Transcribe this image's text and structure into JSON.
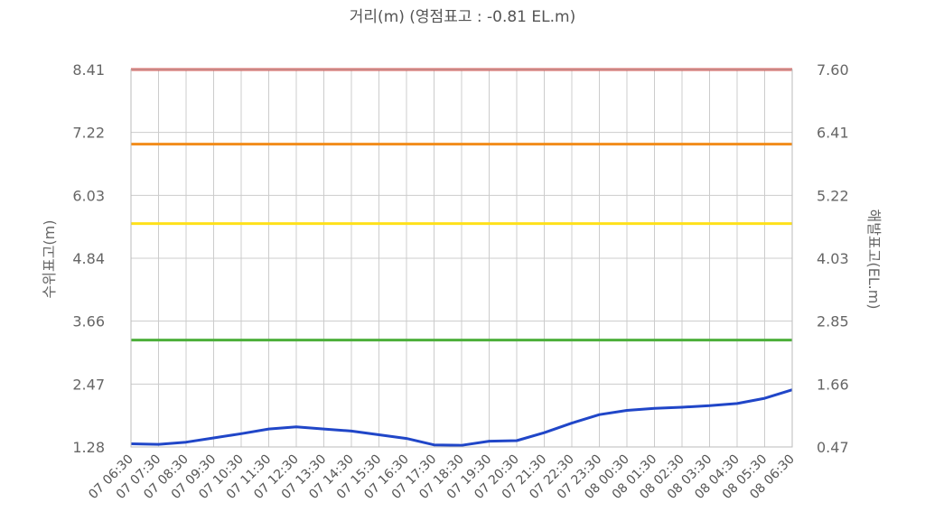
{
  "chart_data": {
    "type": "line",
    "title": "거리(m) (영점표고 : -0.81 EL.m)",
    "ylabel_left": "수위표고(m)",
    "ylabel_right": "해발표고(EL.m)",
    "ylim_left": [
      1.28,
      8.41
    ],
    "ylim_right": [
      0.47,
      7.6
    ],
    "yticks_left": [
      "8.41",
      "7.22",
      "6.03",
      "4.84",
      "3.66",
      "2.47",
      "1.28"
    ],
    "yticks_right": [
      "7.60",
      "6.41",
      "5.22",
      "4.03",
      "2.85",
      "1.66",
      "0.47"
    ],
    "categories": [
      "07 06:30",
      "07 07:30",
      "07 08:30",
      "07 09:30",
      "07 10:30",
      "07 11:30",
      "07 12:30",
      "07 13:30",
      "07 14:30",
      "07 15:30",
      "07 16:30",
      "07 17:30",
      "07 18:30",
      "07 19:30",
      "07 20:30",
      "07 21:30",
      "07 22:30",
      "07 23:30",
      "08 00:30",
      "08 01:30",
      "08 02:30",
      "08 03:30",
      "08 04:30",
      "08 05:30",
      "08 06:30"
    ],
    "grid": true,
    "threshold_lines": [
      {
        "value": 8.41,
        "color": "#d9534f"
      },
      {
        "value": 7.0,
        "color": "#f28c1a"
      },
      {
        "value": 5.5,
        "color": "#ffe11a"
      },
      {
        "value": 3.3,
        "color": "#4caf3a"
      }
    ],
    "series": [
      {
        "color": "#2046c8",
        "values": [
          1.34,
          1.33,
          1.37,
          1.45,
          1.53,
          1.62,
          1.66,
          1.62,
          1.58,
          1.51,
          1.44,
          1.32,
          1.31,
          1.39,
          1.4,
          1.55,
          1.73,
          1.89,
          1.97,
          2.01,
          2.03,
          2.06,
          2.1,
          2.2,
          2.36
        ]
      }
    ]
  }
}
